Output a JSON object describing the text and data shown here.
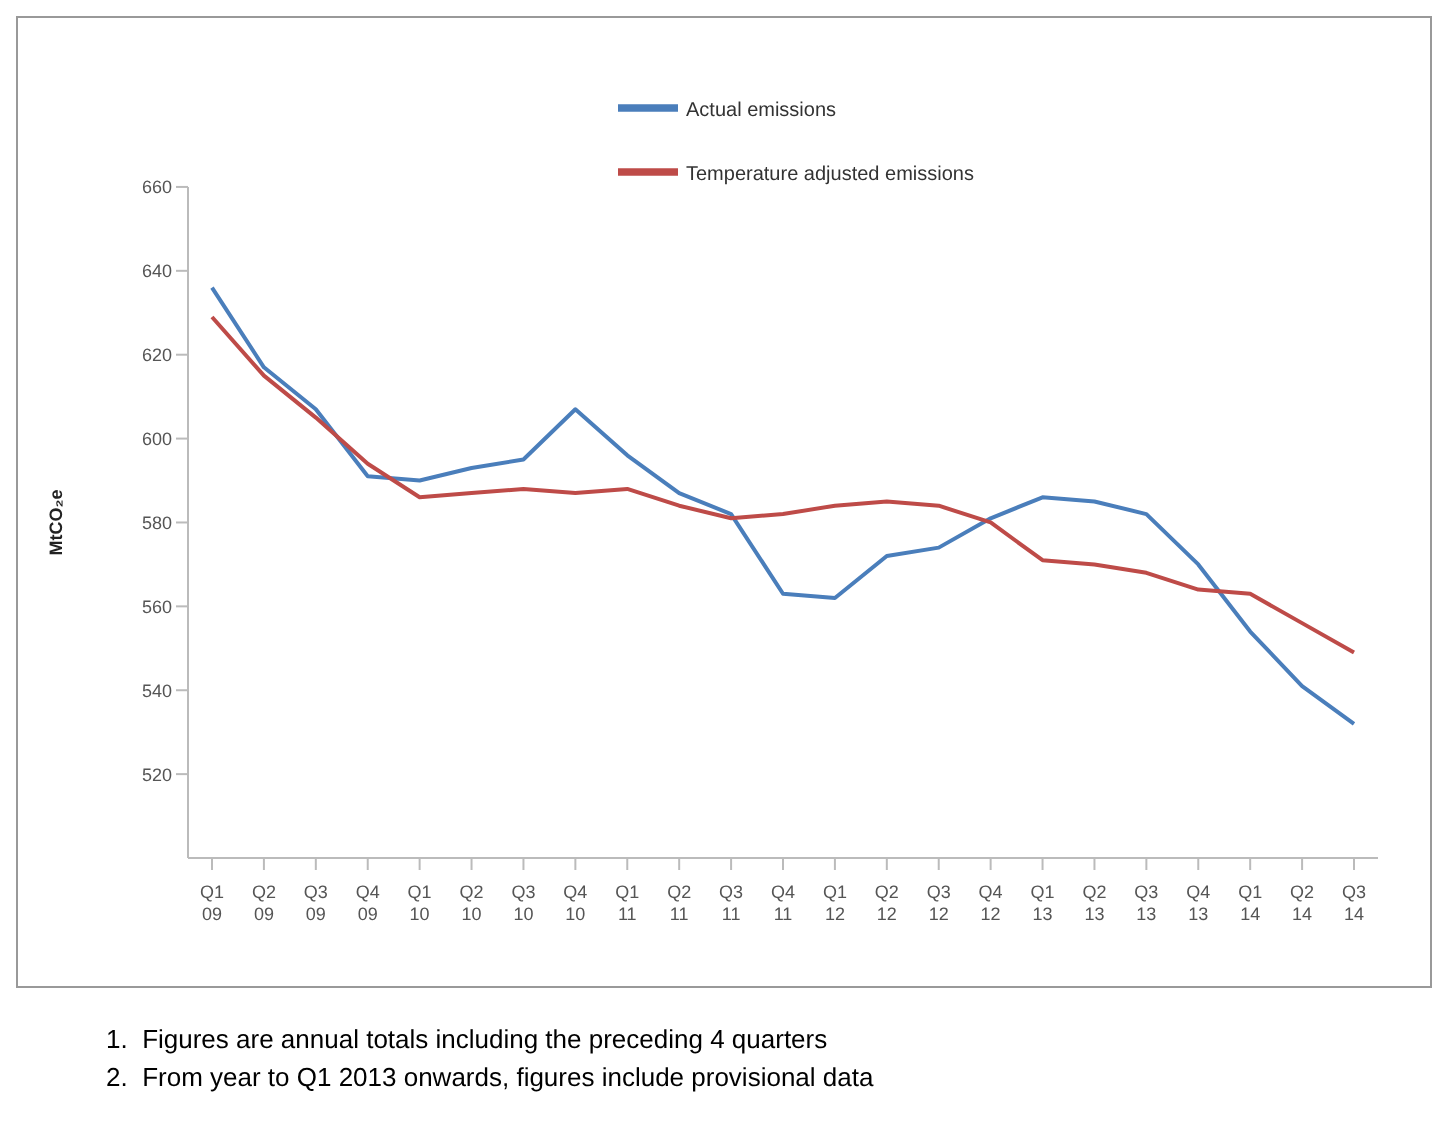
{
  "chart_data": {
    "type": "line",
    "ylabel": "MtCO₂e",
    "categories": [
      "Q1 09",
      "Q2 09",
      "Q3 09",
      "Q4 09",
      "Q1 10",
      "Q2 10",
      "Q3 10",
      "Q4 10",
      "Q1 11",
      "Q2 11",
      "Q3 11",
      "Q4 11",
      "Q1 12",
      "Q2 12",
      "Q3 12",
      "Q4 12",
      "Q1 13",
      "Q2 13",
      "Q3 13",
      "Q4 13",
      "Q1 14",
      "Q2 14",
      "Q3 14"
    ],
    "series": [
      {
        "name": "Actual emissions",
        "color": "#4a7ebb",
        "values": [
          636,
          617,
          607,
          591,
          590,
          593,
          595,
          607,
          596,
          587,
          582,
          563,
          562,
          572,
          574,
          581,
          586,
          585,
          582,
          570,
          554,
          541,
          532
        ]
      },
      {
        "name": "Temperature adjusted emissions",
        "color": "#be4b48",
        "values": [
          629,
          615,
          605,
          594,
          586,
          587,
          588,
          587,
          588,
          584,
          581,
          582,
          584,
          585,
          584,
          580,
          571,
          570,
          568,
          564,
          563,
          556,
          549
        ]
      }
    ],
    "ylim": [
      500,
      660
    ],
    "yticks": [
      520,
      540,
      560,
      580,
      600,
      620,
      640,
      660
    ],
    "grid": false,
    "legend": "top",
    "marker": "none",
    "line_style": "solid",
    "annotations": [
      "1.  Figures are annual totals including the preceding 4 quarters",
      "2.  From year to Q1 2013 onwards, figures include provisional data"
    ]
  }
}
